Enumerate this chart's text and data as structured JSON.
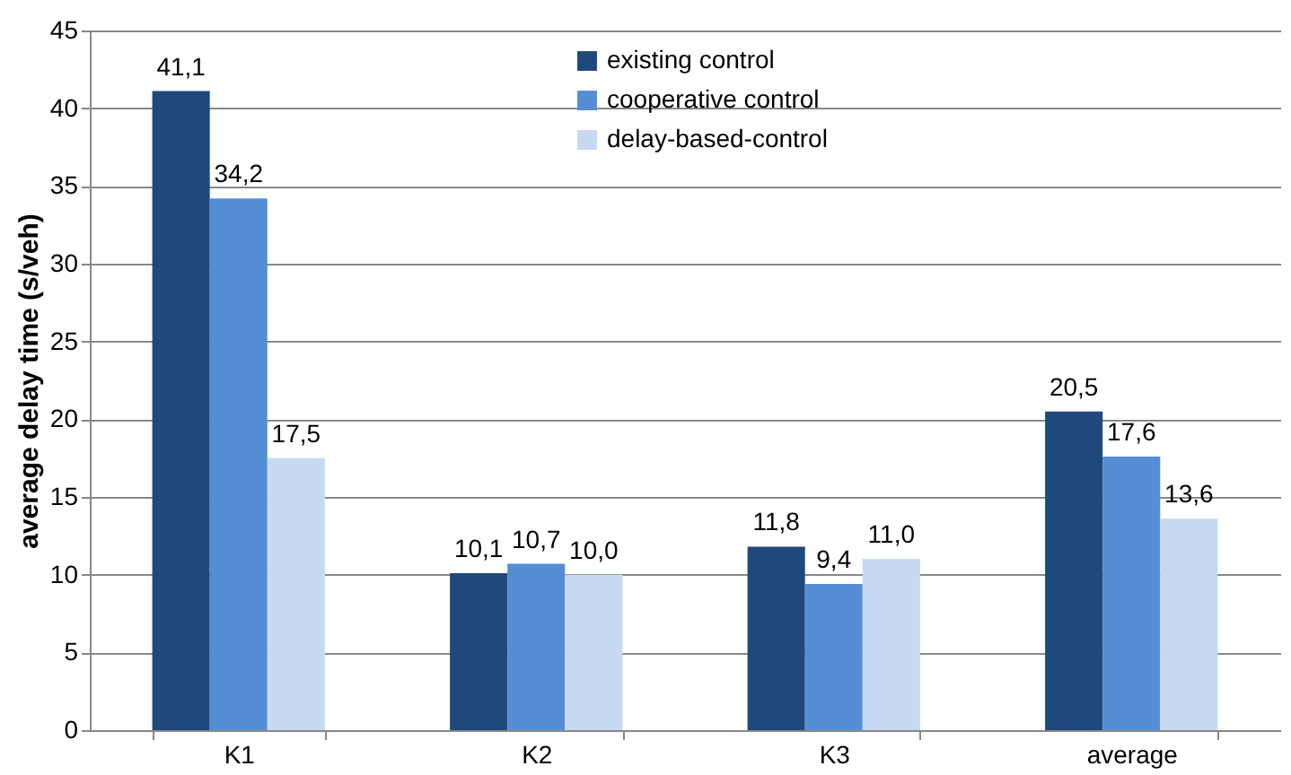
{
  "chart_data": {
    "type": "bar",
    "ylabel": "average delay time (s/veh)",
    "categories": [
      "K1",
      "K2",
      "K3",
      "average"
    ],
    "series": [
      {
        "name": "existing control",
        "color": "#1f497d",
        "values": [
          41.1,
          10.1,
          11.8,
          20.5
        ],
        "value_labels": [
          "41,1",
          "10,1",
          "11,8",
          "20,5"
        ]
      },
      {
        "name": "cooperative control",
        "color": "#558ed5",
        "values": [
          34.2,
          10.7,
          9.4,
          17.6
        ],
        "value_labels": [
          "34,2",
          "10,7",
          "9,4",
          "17,6"
        ]
      },
      {
        "name": "delay-based-control",
        "color": "#c6d9f1",
        "values": [
          17.5,
          10.0,
          11.0,
          13.6
        ],
        "value_labels": [
          "17,5",
          "10,0",
          "11,0",
          "13,6"
        ]
      }
    ],
    "ylim": [
      0,
      45
    ],
    "yticks": [
      0,
      5,
      10,
      15,
      20,
      25,
      30,
      35,
      40,
      45
    ],
    "grid": "y",
    "legend": "top"
  }
}
